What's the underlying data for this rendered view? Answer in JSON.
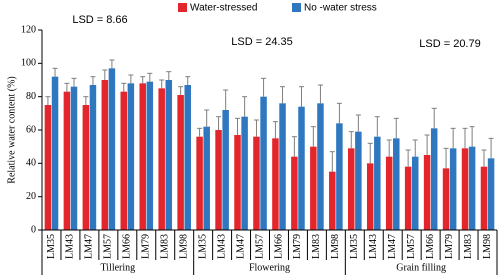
{
  "chart_data": {
    "type": "bar",
    "ylabel": "Relative water content (%)",
    "groups": [
      "Tillering",
      "Flowering",
      "Grain filling"
    ],
    "categories": [
      "LM35",
      "LM43",
      "LM47",
      "LM57",
      "LM66",
      "LM79",
      "LM83",
      "LM98",
      "LM35",
      "LM43",
      "LM47",
      "LM57",
      "LM66",
      "LM79",
      "LM83",
      "LM98",
      "LM35",
      "LM43",
      "LM47",
      "LM57",
      "LM66",
      "LM79",
      "LM83",
      "LM98"
    ],
    "series": [
      {
        "name": "Water-stressed",
        "color": "#e3262b",
        "values": [
          75,
          83,
          75,
          90,
          83,
          88,
          85,
          81,
          56,
          60,
          57,
          56,
          55,
          44,
          50,
          35,
          49,
          40,
          44,
          38,
          45,
          37,
          49,
          38
        ],
        "errors": [
          5,
          5,
          5,
          6,
          5,
          4,
          5,
          5,
          5,
          8,
          10,
          10,
          10,
          12,
          12,
          12,
          10,
          12,
          10,
          10,
          12,
          12,
          12,
          10
        ]
      },
      {
        "name": "No -water stress",
        "color": "#2f78c0",
        "values": [
          92,
          86,
          87,
          97,
          88,
          89,
          90,
          87,
          62,
          72,
          68,
          80,
          76,
          74,
          76,
          64,
          59,
          56,
          55,
          44,
          61,
          49,
          50,
          43
        ],
        "errors": [
          5,
          5,
          5,
          5,
          5,
          5,
          5,
          5,
          10,
          12,
          12,
          11,
          10,
          12,
          11,
          12,
          10,
          12,
          12,
          10,
          12,
          12,
          12,
          12
        ]
      }
    ],
    "annotations": [
      "LSD = 8.66",
      "LSD = 24.35",
      "LSD = 20.79"
    ],
    "ylim": [
      0,
      120
    ],
    "yticks": [
      0,
      20,
      40,
      60,
      80,
      100,
      120
    ]
  }
}
